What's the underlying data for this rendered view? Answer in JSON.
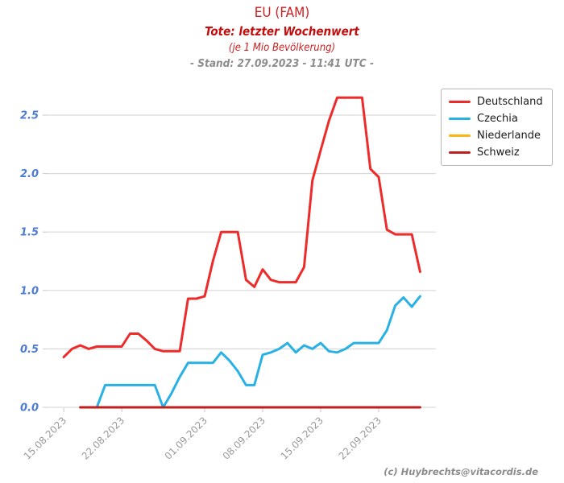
{
  "header": {
    "title": "EU (FAM)",
    "subtitle": "Tote: letzter Wochenwert",
    "unit_note": "(je 1 Mio Bevölkerung)",
    "stand": "- Stand: 27.09.2023 - 11:41 UTC -"
  },
  "footer": {
    "credit": "(c) Huybrechts@vitacordis.de"
  },
  "colors": {
    "title_red": "#cf2020",
    "subtitle_red": "#c30d0d",
    "stand_gray": "#8c8c8c",
    "grid": "#d9d9d9",
    "tick_mark": "#c8c8c8",
    "y_label_blue": "#4c7bd2",
    "x_label_gray": "#9a9a9a",
    "deutschland": "#ee2b2b",
    "czechia": "#29b1e6",
    "niederlande": "#fcb514",
    "schweiz": "#c01f1f"
  },
  "chart_data": {
    "type": "line",
    "title": "EU (FAM)",
    "subtitle": "Tote: letzter Wochenwert (je 1 Mio Bevölkerung)",
    "ylim": [
      0,
      2.7
    ],
    "grid": "horizontal",
    "legend_position": "upper right",
    "y_ticks": [
      "0.0",
      "0.5",
      "1.0",
      "1.5",
      "2.0",
      "2.5"
    ],
    "x_ticks": [
      {
        "day": 0,
        "label": "15.08.2023"
      },
      {
        "day": 7,
        "label": "22.08.2023"
      },
      {
        "day": 17,
        "label": "01.09.2023"
      },
      {
        "day": 24,
        "label": "08.09.2023"
      },
      {
        "day": 31,
        "label": "15.09.2023"
      },
      {
        "day": 38,
        "label": "22.09.2023"
      }
    ],
    "x_labels": [
      "15.08.2023",
      "16.08.2023",
      "17.08.2023",
      "18.08.2023",
      "19.08.2023",
      "20.08.2023",
      "21.08.2023",
      "22.08.2023",
      "23.08.2023",
      "24.08.2023",
      "25.08.2023",
      "26.08.2023",
      "27.08.2023",
      "28.08.2023",
      "29.08.2023",
      "30.08.2023",
      "31.08.2023",
      "01.09.2023",
      "02.09.2023",
      "03.09.2023",
      "04.09.2023",
      "05.09.2023",
      "06.09.2023",
      "07.09.2023",
      "08.09.2023",
      "09.09.2023",
      "10.09.2023",
      "11.09.2023",
      "12.09.2023",
      "13.09.2023",
      "14.09.2023",
      "15.09.2023",
      "16.09.2023",
      "17.09.2023",
      "18.09.2023",
      "19.09.2023",
      "20.09.2023",
      "21.09.2023",
      "22.09.2023",
      "23.09.2023",
      "24.09.2023",
      "25.09.2023",
      "26.09.2023",
      "27.09.2023"
    ],
    "series": [
      {
        "name": "Deutschland",
        "color": "#ee2b2b",
        "values": [
          0.43,
          0.5,
          0.53,
          0.5,
          0.52,
          0.52,
          0.52,
          0.52,
          0.63,
          0.63,
          0.57,
          0.5,
          0.48,
          0.48,
          0.48,
          0.93,
          0.93,
          0.95,
          1.25,
          1.5,
          1.5,
          1.5,
          1.09,
          1.03,
          1.18,
          1.09,
          1.07,
          1.07,
          1.07,
          1.2,
          1.94,
          2.2,
          2.45,
          2.65,
          2.65,
          2.65,
          2.65,
          2.04,
          1.97,
          1.52,
          1.48,
          1.48,
          1.48,
          1.16
        ]
      },
      {
        "name": "Czechia",
        "color": "#29b1e6",
        "values": [
          null,
          null,
          0.0,
          0.0,
          0.0,
          0.19,
          0.19,
          0.19,
          0.19,
          0.19,
          0.19,
          0.19,
          0.0,
          0.12,
          0.26,
          0.38,
          0.38,
          0.38,
          0.38,
          0.47,
          0.4,
          0.31,
          0.19,
          0.19,
          0.45,
          0.47,
          0.5,
          0.55,
          0.47,
          0.53,
          0.5,
          0.55,
          0.48,
          0.47,
          0.5,
          0.55,
          0.55,
          0.55,
          0.55,
          0.66,
          0.87,
          0.94,
          0.86,
          0.95
        ]
      },
      {
        "name": "Niederlande",
        "color": "#fcb514",
        "values": [
          null,
          null,
          0.0,
          0.0,
          0.0,
          0.0,
          0.0,
          0.0,
          0.0,
          0.0,
          0.0,
          0.0,
          0.0,
          0.0,
          0.0,
          0.0,
          0.0,
          0.0,
          0.0,
          0.0,
          0.0,
          0.0,
          0.0,
          0.0,
          0.0,
          0.0,
          0.0,
          0.0,
          0.0,
          0.0,
          0.0,
          0.0,
          0.0,
          0.0,
          0.0,
          0.0,
          0.0,
          0.0,
          0.0,
          0.0,
          0.0,
          0.0,
          0.0,
          0.0
        ]
      },
      {
        "name": "Schweiz",
        "color": "#c01f1f",
        "values": [
          null,
          null,
          0.0,
          0.0,
          0.0,
          0.0,
          0.0,
          0.0,
          0.0,
          0.0,
          0.0,
          0.0,
          0.0,
          0.0,
          0.0,
          0.0,
          0.0,
          0.0,
          0.0,
          0.0,
          0.0,
          0.0,
          0.0,
          0.0,
          0.0,
          0.0,
          0.0,
          0.0,
          0.0,
          0.0,
          0.0,
          0.0,
          0.0,
          0.0,
          0.0,
          0.0,
          0.0,
          0.0,
          0.0,
          0.0,
          0.0,
          0.0,
          0.0,
          0.0
        ]
      }
    ]
  }
}
